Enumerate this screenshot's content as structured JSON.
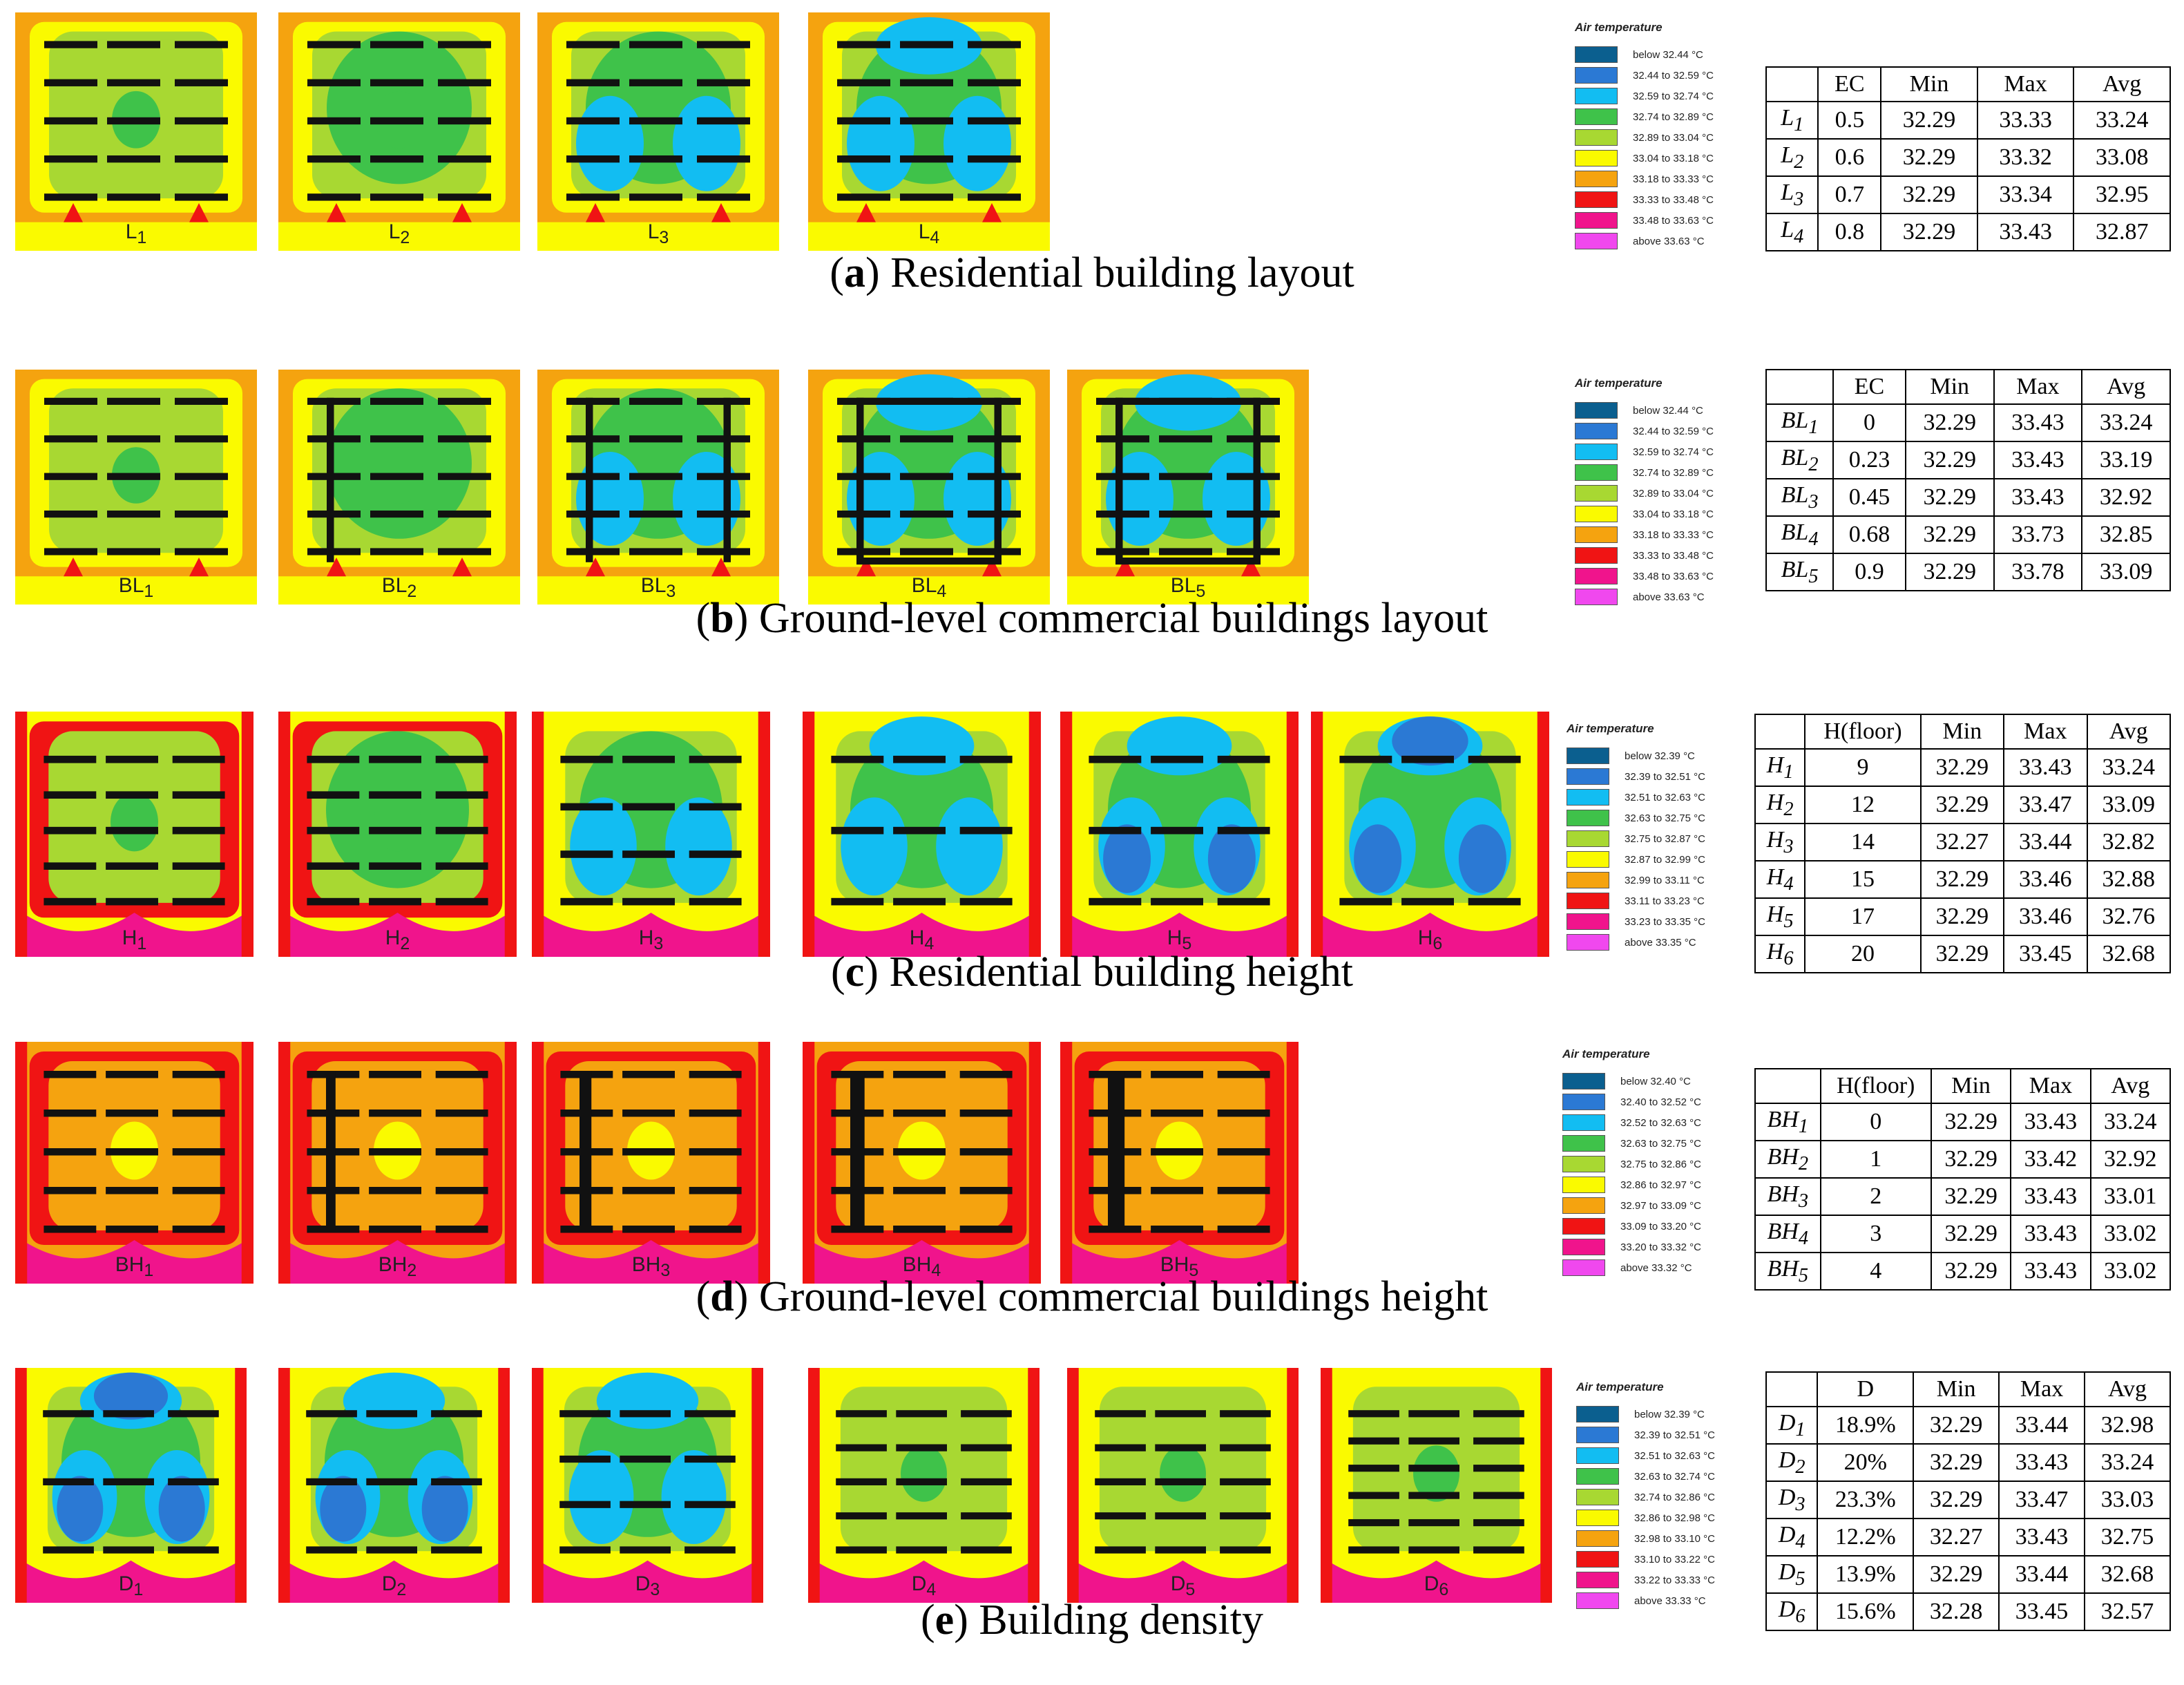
{
  "palette": [
    "#0b5f8f",
    "#2b79d4",
    "#12bdf2",
    "#3fc24a",
    "#a8d832",
    "#fafa00",
    "#f5a30f",
    "#f01414",
    "#f0148c",
    "#f048ee"
  ],
  "sections": [
    {
      "id": "a",
      "caption_letter": "a",
      "caption_text": "Residential building layout",
      "panels": [
        "L1",
        "L2",
        "L3",
        "L4"
      ],
      "legend": {
        "title": "Air temperature",
        "items": [
          "below 32.44 °C",
          "32.44 to 32.59 °C",
          "32.59 to 32.74 °C",
          "32.74 to 32.89 °C",
          "32.89 to 33.04 °C",
          "33.04 to 33.18 °C",
          "33.18 to 33.33 °C",
          "33.33 to 33.48 °C",
          "33.48 to 33.63 °C",
          "above 33.63 °C"
        ]
      },
      "table": {
        "headers": [
          "",
          "EC",
          "Min",
          "Max",
          "Avg"
        ],
        "rows": [
          [
            "L1",
            "0.5",
            "32.29",
            "33.33",
            "33.24"
          ],
          [
            "L2",
            "0.6",
            "32.29",
            "33.32",
            "33.08"
          ],
          [
            "L3",
            "0.7",
            "32.29",
            "33.34",
            "32.95"
          ],
          [
            "L4",
            "0.8",
            "32.29",
            "33.43",
            "32.87"
          ]
        ]
      }
    },
    {
      "id": "b",
      "caption_letter": "b",
      "caption_text": "Ground-level commercial buildings layout",
      "panels": [
        "BL1",
        "BL2",
        "BL3",
        "BL4",
        "BL5"
      ],
      "legend": {
        "title": "Air temperature",
        "items": [
          "below 32.44 °C",
          "32.44 to 32.59 °C",
          "32.59 to 32.74 °C",
          "32.74 to 32.89 °C",
          "32.89 to 33.04 °C",
          "33.04 to 33.18 °C",
          "33.18 to 33.33 °C",
          "33.33 to 33.48 °C",
          "33.48 to 33.63 °C",
          "above 33.63 °C"
        ]
      },
      "table": {
        "headers": [
          "",
          "EC",
          "Min",
          "Max",
          "Avg"
        ],
        "rows": [
          [
            "BL1",
            "0",
            "32.29",
            "33.43",
            "33.24"
          ],
          [
            "BL2",
            "0.23",
            "32.29",
            "33.43",
            "33.19"
          ],
          [
            "BL3",
            "0.45",
            "32.29",
            "33.43",
            "32.92"
          ],
          [
            "BL4",
            "0.68",
            "32.29",
            "33.73",
            "32.85"
          ],
          [
            "BL5",
            "0.9",
            "32.29",
            "33.78",
            "33.09"
          ]
        ]
      }
    },
    {
      "id": "c",
      "caption_letter": "c",
      "caption_text": "Residential building height",
      "panels": [
        "H1",
        "H2",
        "H3",
        "H4",
        "H5",
        "H6"
      ],
      "legend": {
        "title": "Air temperature",
        "items": [
          "below 32.39 °C",
          "32.39 to 32.51 °C",
          "32.51 to 32.63 °C",
          "32.63 to 32.75 °C",
          "32.75 to 32.87 °C",
          "32.87 to 32.99 °C",
          "32.99 to 33.11 °C",
          "33.11 to 33.23 °C",
          "33.23 to 33.35 °C",
          "above 33.35 °C"
        ]
      },
      "table": {
        "headers": [
          "",
          "H(floor)",
          "Min",
          "Max",
          "Avg"
        ],
        "rows": [
          [
            "H1",
            "9",
            "32.29",
            "33.43",
            "33.24"
          ],
          [
            "H2",
            "12",
            "32.29",
            "33.47",
            "33.09"
          ],
          [
            "H3",
            "14",
            "32.27",
            "33.44",
            "32.82"
          ],
          [
            "H4",
            "15",
            "32.29",
            "33.46",
            "32.88"
          ],
          [
            "H5",
            "17",
            "32.29",
            "33.46",
            "32.76"
          ],
          [
            "H6",
            "20",
            "32.29",
            "33.45",
            "32.68"
          ]
        ]
      }
    },
    {
      "id": "d",
      "caption_letter": "d",
      "caption_text": "Ground-level commercial buildings height",
      "panels": [
        "BH1",
        "BH2",
        "BH3",
        "BH4",
        "BH5"
      ],
      "legend": {
        "title": "Air temperature",
        "items": [
          "below 32.40 °C",
          "32.40 to 32.52 °C",
          "32.52 to 32.63 °C",
          "32.63 to 32.75 °C",
          "32.75 to 32.86 °C",
          "32.86 to 32.97 °C",
          "32.97 to 33.09 °C",
          "33.09 to 33.20 °C",
          "33.20 to 33.32 °C",
          "above 33.32 °C"
        ]
      },
      "table": {
        "headers": [
          "",
          "H(floor)",
          "Min",
          "Max",
          "Avg"
        ],
        "rows": [
          [
            "BH1",
            "0",
            "32.29",
            "33.43",
            "33.24"
          ],
          [
            "BH2",
            "1",
            "32.29",
            "33.42",
            "32.92"
          ],
          [
            "BH3",
            "2",
            "32.29",
            "33.43",
            "33.01"
          ],
          [
            "BH4",
            "3",
            "32.29",
            "33.43",
            "33.02"
          ],
          [
            "BH5",
            "4",
            "32.29",
            "33.43",
            "33.02"
          ]
        ]
      }
    },
    {
      "id": "e",
      "caption_letter": "e",
      "caption_text": "Building density",
      "panels": [
        "D1",
        "D2",
        "D3",
        "D4",
        "D5",
        "D6"
      ],
      "legend": {
        "title": "Air temperature",
        "items": [
          "below 32.39 °C",
          "32.39 to 32.51 °C",
          "32.51 to 32.63 °C",
          "32.63 to 32.74 °C",
          "32.74 to 32.86 °C",
          "32.86 to 32.98 °C",
          "32.98 to 33.10 °C",
          "33.10 to 33.22 °C",
          "33.22 to 33.33 °C",
          "above 33.33 °C"
        ]
      },
      "table": {
        "headers": [
          "",
          "D",
          "Min",
          "Max",
          "Avg"
        ],
        "rows": [
          [
            "D1",
            "18.9%",
            "32.29",
            "33.44",
            "32.98"
          ],
          [
            "D2",
            "20%",
            "32.29",
            "33.43",
            "33.24"
          ],
          [
            "D3",
            "23.3%",
            "32.29",
            "33.47",
            "33.03"
          ],
          [
            "D4",
            "12.2%",
            "32.27",
            "33.43",
            "32.75"
          ],
          [
            "D5",
            "13.9%",
            "32.29",
            "33.44",
            "32.68"
          ],
          [
            "D6",
            "15.6%",
            "32.28",
            "33.45",
            "32.57"
          ]
        ]
      }
    }
  ]
}
